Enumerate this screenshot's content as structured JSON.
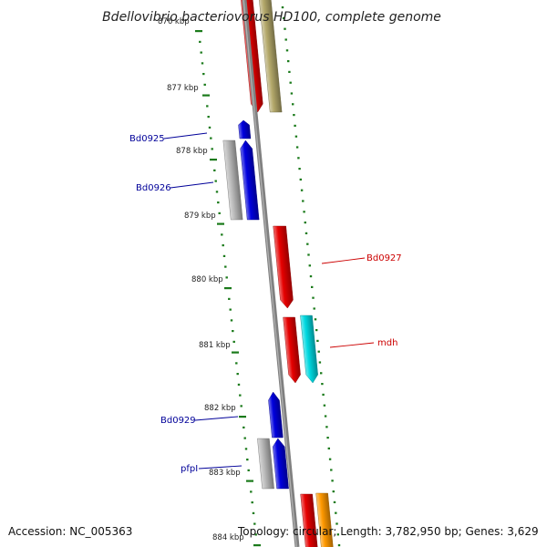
{
  "header": {
    "title": "Bdellovibrio bacteriovorus HD100, complete genome"
  },
  "footer": {
    "accession": "Accession: NC_005363",
    "topology": "Topology: circular; Length: 3,782,950 bp; Genes: 3,629"
  },
  "colors": {
    "background": "#ffffff",
    "backbone": "#808080",
    "ruler_tick": "#1a7a1a",
    "gene_red": "#e60000",
    "gene_blue": "#0000dd",
    "gene_cyan": "#00d8e0",
    "gene_olive": "#b3a86a",
    "gene_gray": "#b8b8b8",
    "gene_orange": "#ff9900",
    "label_blue": "#000099",
    "label_red": "#cc0000"
  },
  "ruler": {
    "unit": "kbp",
    "labels": [
      "876 kbp",
      "877 kbp",
      "878 kbp",
      "879 kbp",
      "880 kbp",
      "881 kbp",
      "882 kbp",
      "883 kbp",
      "884 kbp"
    ]
  },
  "gene_labels": [
    {
      "text": "Bd0925",
      "color": "blue"
    },
    {
      "text": "Bd0926",
      "color": "blue"
    },
    {
      "text": "Bd0927",
      "color": "red"
    },
    {
      "text": "mdh",
      "color": "red"
    },
    {
      "text": "Bd0929",
      "color": "blue"
    },
    {
      "text": "pfpI",
      "color": "blue"
    }
  ]
}
